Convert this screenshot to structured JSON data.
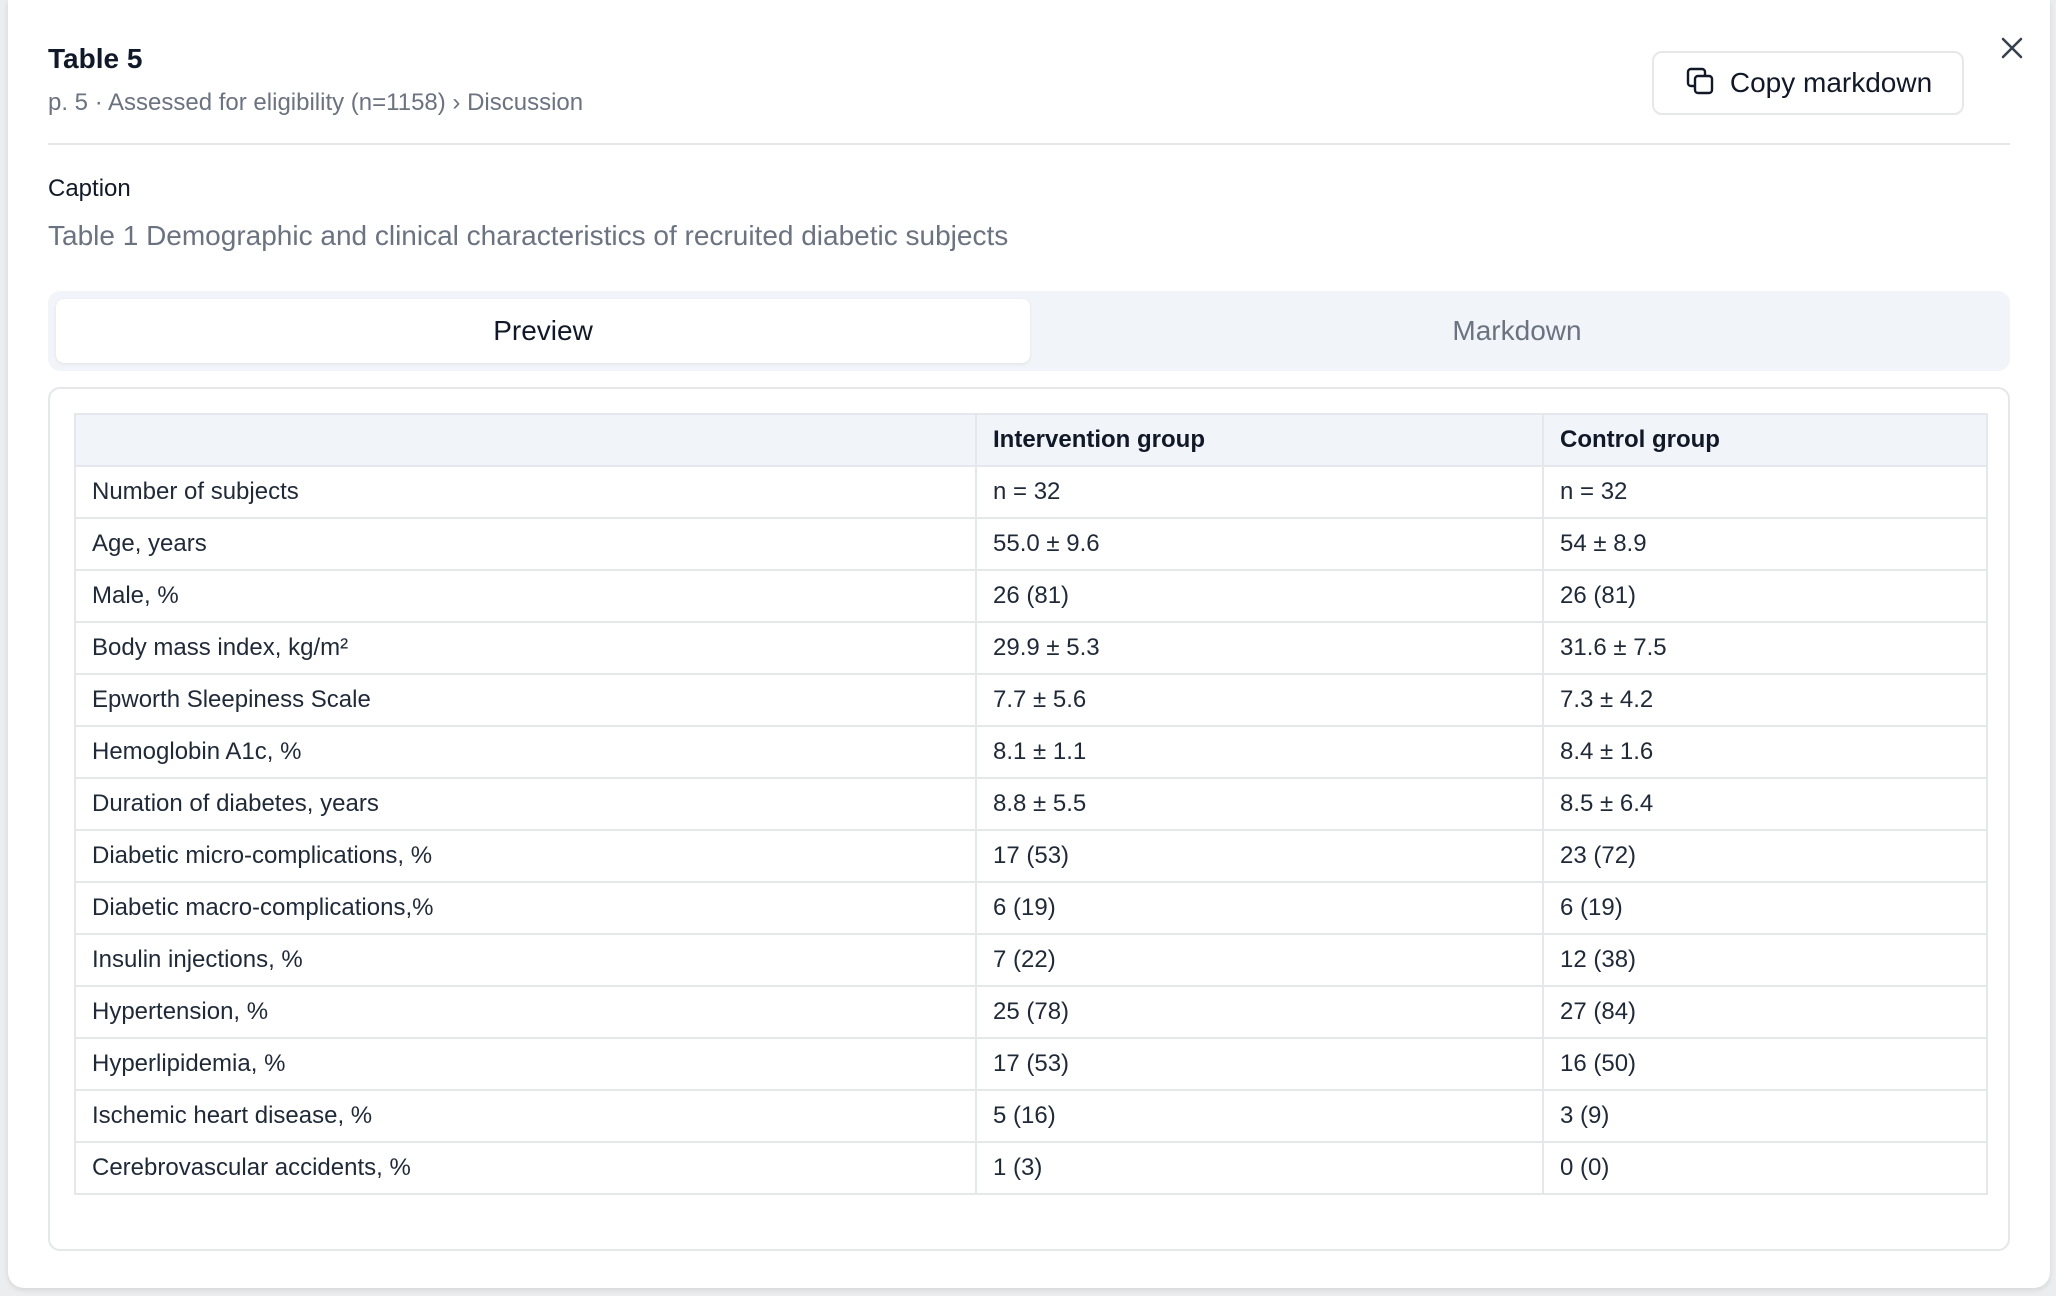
{
  "dialog": {
    "title": "Table 5",
    "subtitle": "p. 5 · Assessed for eligibility (n=1158) › Discussion",
    "copy_label": "Copy markdown",
    "close_icon": "close-icon",
    "copy_icon": "copy-icon"
  },
  "caption": {
    "heading": "Caption",
    "text": "Table 1 Demographic and clinical characteristics of recruited diabetic subjects"
  },
  "tabs": [
    {
      "label": "Preview",
      "active": true
    },
    {
      "label": "Markdown",
      "active": false
    }
  ],
  "table": {
    "headers": [
      "",
      "Intervention group",
      "Control group"
    ],
    "rows": [
      [
        "Number of subjects",
        "n = 32",
        "n = 32"
      ],
      [
        "Age, years",
        "55.0 ± 9.6",
        "54 ± 8.9"
      ],
      [
        "Male, %",
        "26 (81)",
        "26 (81)"
      ],
      [
        "Body mass index, kg/m²",
        "29.9 ± 5.3",
        "31.6 ± 7.5"
      ],
      [
        "Epworth Sleepiness Scale",
        "7.7 ± 5.6",
        "7.3 ± 4.2"
      ],
      [
        "Hemoglobin A1c, %",
        "8.1 ± 1.1",
        "8.4 ± 1.6"
      ],
      [
        "Duration of diabetes, years",
        "8.8 ± 5.5",
        "8.5 ± 6.4"
      ],
      [
        "Diabetic micro-complications, %",
        "17 (53)",
        "23 (72)"
      ],
      [
        "Diabetic macro-complications,%",
        "6 (19)",
        "6 (19)"
      ],
      [
        "Insulin injections, %",
        "7 (22)",
        "12 (38)"
      ],
      [
        "Hypertension, %",
        "25 (78)",
        "27 (84)"
      ],
      [
        "Hyperlipidemia, %",
        "17 (53)",
        "16 (50)"
      ],
      [
        "Ischemic heart disease, %",
        "5 (16)",
        "3 (9)"
      ],
      [
        "Cerebrovascular accidents, %",
        "1 (3)",
        "0 (0)"
      ]
    ]
  }
}
